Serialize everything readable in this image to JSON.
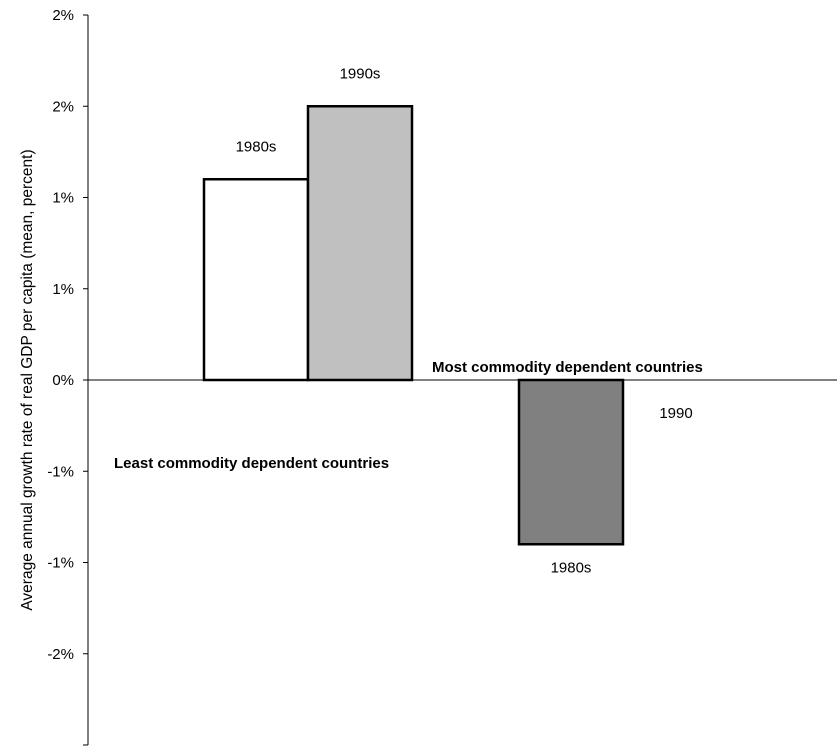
{
  "chart_data": {
    "type": "bar",
    "ylabel": "Average annual growth rate of real GDP per capita (mean, percent)",
    "ylim": [
      -2,
      2
    ],
    "ytick_values": [
      2,
      1.5,
      1,
      0.5,
      0,
      -0.5,
      -1,
      -1.5
    ],
    "ytick_labels": [
      "2%",
      "2%",
      "1%",
      "1%",
      "0%",
      "-1%",
      "-1%",
      "-2%"
    ],
    "grid": false,
    "groups": [
      {
        "name": "Least commodity dependent countries",
        "bars": [
          {
            "label": "1980s",
            "value": 1.1,
            "fill": "#ffffff"
          },
          {
            "label": "1990s",
            "value": 1.5,
            "fill": "#c0c0c0"
          }
        ]
      },
      {
        "name": "Most commodity dependent countries",
        "bars": [
          {
            "label": "1980s",
            "value": -0.9,
            "fill": "#808080"
          },
          {
            "label": "1990",
            "value": 0,
            "fill": "#ffffff"
          }
        ]
      }
    ]
  }
}
